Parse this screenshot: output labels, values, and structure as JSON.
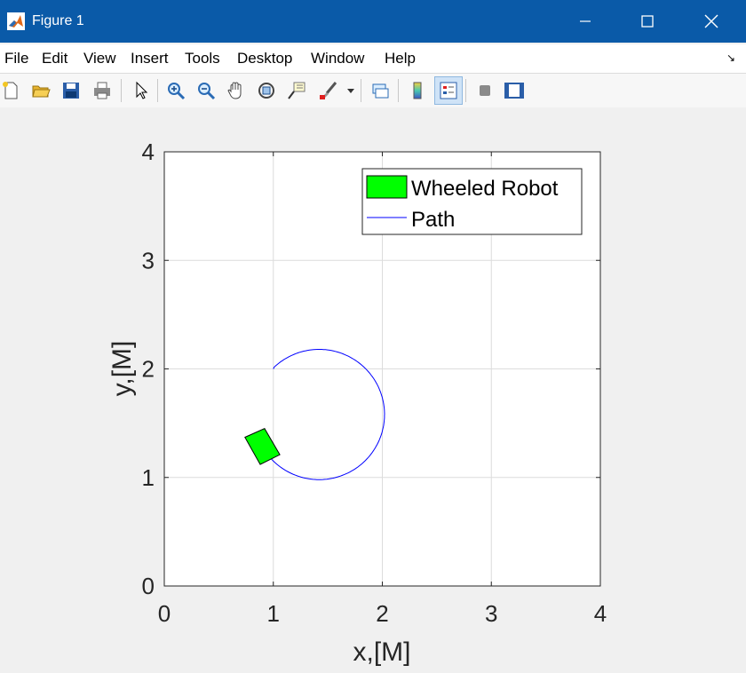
{
  "window": {
    "title": "Figure 1"
  },
  "menu": [
    "File",
    "Edit",
    "View",
    "Insert",
    "Tools",
    "Desktop",
    "Window",
    "Help"
  ],
  "toolbar": {
    "items": [
      "new-figure",
      "open-file",
      "save",
      "print",
      "pointer",
      "zoom-in",
      "zoom-out",
      "pan",
      "rotate-3d",
      "data-cursor",
      "brush",
      "brush-dropdown",
      "link-plot",
      "insert-colorbar",
      "insert-legend",
      "hide-plot-tools",
      "show-plot-tools"
    ]
  },
  "chart_data": {
    "type": "line",
    "xlabel": "x,[M]",
    "ylabel": "y,[M]",
    "xlim": [
      0,
      4
    ],
    "ylim": [
      0,
      4
    ],
    "xticks": [
      "0",
      "1",
      "2",
      "3",
      "4"
    ],
    "yticks": [
      "0",
      "1",
      "2",
      "3",
      "4"
    ],
    "grid": true,
    "legend": {
      "placement": "top-right",
      "entries": [
        "Wheeled Robot",
        "Path"
      ]
    },
    "series": [
      {
        "name": "Path",
        "color": "#0000ff",
        "center": [
          1.42,
          1.58
        ],
        "radius": 0.6,
        "start_point": [
          1.0,
          2.0
        ],
        "end_point": [
          0.96,
          1.25
        ],
        "direction": "clockwise"
      }
    ],
    "robot": {
      "name": "Wheeled Robot",
      "color": "#00ff00",
      "polygon": [
        [
          0.74,
          1.37
        ],
        [
          0.92,
          1.45
        ],
        [
          1.06,
          1.21
        ],
        [
          0.88,
          1.12
        ]
      ]
    }
  }
}
